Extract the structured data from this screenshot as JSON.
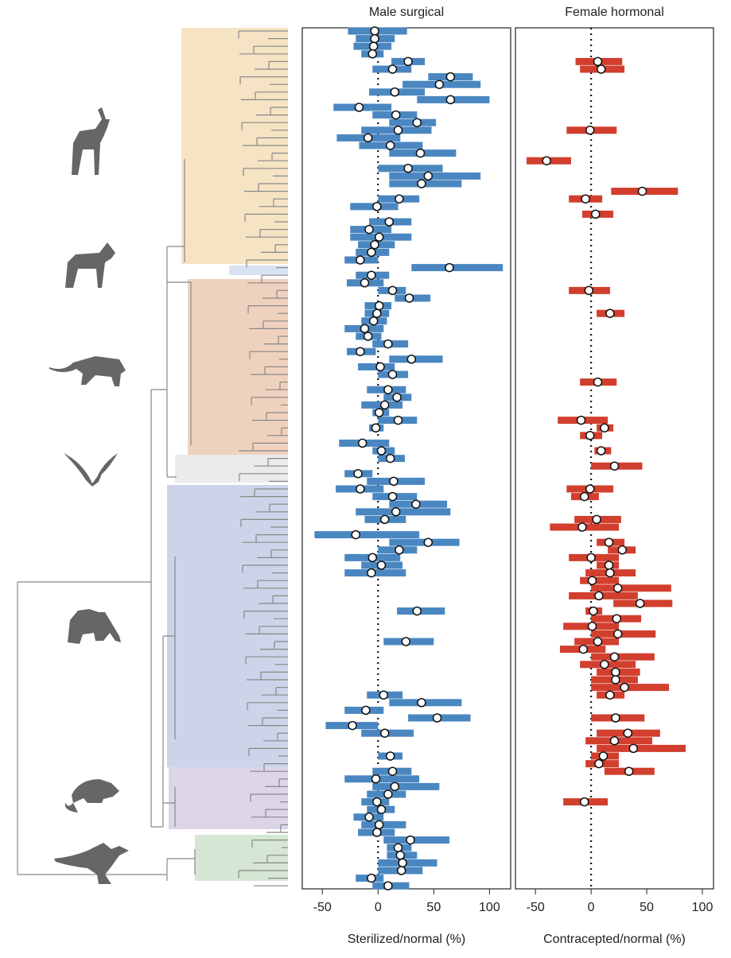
{
  "chart_data": [
    {
      "type": "forest",
      "title": "Male surgical",
      "x_label": "Sterilized/normal (%)",
      "color": "#4a87c1",
      "xlim": [
        -68,
        119
      ],
      "xticks": [
        -50,
        0,
        50,
        100
      ],
      "values": [
        -3,
        -3,
        -4,
        -5,
        27,
        13,
        65,
        55,
        15,
        65,
        -17,
        16,
        35,
        18,
        -9,
        11,
        38,
        null,
        27,
        45,
        39,
        null,
        19,
        -1,
        null,
        10,
        -8,
        1,
        -3,
        -6,
        -16,
        64,
        -6,
        -12,
        13,
        28,
        1,
        -1,
        -4,
        -12,
        -9,
        9,
        -16,
        30,
        2,
        13,
        null,
        9,
        17,
        6,
        1,
        18,
        -2,
        null,
        -14,
        3,
        11,
        null,
        -18,
        14,
        -16,
        13,
        34,
        16,
        6,
        null,
        -20,
        45,
        19,
        -5,
        3,
        -6,
        null,
        null,
        null,
        null,
        35,
        null,
        null,
        null,
        25,
        null,
        null,
        null,
        null,
        null,
        null,
        5,
        39,
        -11,
        53,
        -23,
        6,
        null,
        null,
        11,
        null,
        13,
        -2,
        15,
        9,
        -1,
        3,
        -8,
        1,
        -1,
        29,
        18,
        20,
        22,
        21,
        -6,
        9
      ],
      "lower": [
        -27,
        -20,
        -22,
        -15,
        12,
        -5,
        45,
        22,
        -8,
        35,
        -40,
        -5,
        10,
        -15,
        -37,
        -17,
        10,
        null,
        0,
        10,
        10,
        null,
        0,
        -25,
        null,
        -8,
        -25,
        -25,
        -18,
        -20,
        -30,
        30,
        -20,
        -28,
        0,
        15,
        -12,
        -12,
        -15,
        -30,
        -20,
        -5,
        -28,
        10,
        -18,
        0,
        null,
        -10,
        5,
        -15,
        -5,
        0,
        -8,
        null,
        -35,
        -5,
        0,
        null,
        -30,
        -10,
        -38,
        -5,
        10,
        -20,
        -12,
        null,
        -57,
        10,
        0,
        -30,
        -15,
        -30,
        null,
        null,
        null,
        null,
        17,
        null,
        null,
        null,
        5,
        null,
        null,
        null,
        null,
        null,
        null,
        -10,
        10,
        -30,
        27,
        -47,
        -15,
        null,
        null,
        0,
        null,
        -5,
        -30,
        -5,
        -10,
        -15,
        -10,
        -22,
        -15,
        -18,
        5,
        8,
        8,
        0,
        0,
        -20,
        -5
      ],
      "upper": [
        26,
        15,
        12,
        5,
        42,
        30,
        85,
        92,
        42,
        100,
        12,
        35,
        52,
        48,
        20,
        40,
        70,
        null,
        58,
        92,
        75,
        null,
        37,
        18,
        null,
        30,
        12,
        30,
        15,
        10,
        0,
        112,
        10,
        5,
        25,
        47,
        12,
        10,
        8,
        5,
        3,
        27,
        -2,
        58,
        15,
        27,
        null,
        25,
        30,
        22,
        10,
        35,
        5,
        null,
        10,
        15,
        24,
        null,
        -5,
        42,
        5,
        35,
        62,
        65,
        25,
        null,
        37,
        73,
        35,
        20,
        22,
        25,
        null,
        null,
        null,
        null,
        60,
        null,
        null,
        null,
        50,
        null,
        null,
        null,
        null,
        null,
        null,
        22,
        75,
        5,
        83,
        0,
        32,
        null,
        null,
        22,
        null,
        30,
        37,
        55,
        25,
        10,
        15,
        5,
        25,
        15,
        64,
        30,
        35,
        53,
        40,
        5,
        28
      ]
    },
    {
      "type": "forest",
      "title": "Female hormonal",
      "x_label": "Contracepted/normal (%)",
      "color": "#d23f2e",
      "xlim": [
        -68,
        110
      ],
      "xticks": [
        -50,
        0,
        50,
        100
      ],
      "values": [
        null,
        null,
        null,
        null,
        6,
        9,
        null,
        null,
        null,
        null,
        null,
        null,
        null,
        -1,
        null,
        null,
        null,
        -40,
        null,
        null,
        null,
        46,
        -5,
        null,
        4,
        null,
        null,
        null,
        null,
        null,
        null,
        null,
        null,
        null,
        -2,
        null,
        null,
        17,
        null,
        null,
        null,
        null,
        null,
        null,
        null,
        null,
        6,
        null,
        null,
        null,
        null,
        -9,
        12,
        -1,
        null,
        9,
        null,
        21,
        null,
        null,
        -1,
        -6,
        null,
        null,
        5,
        -8,
        null,
        16,
        28,
        0,
        16,
        17,
        1,
        24,
        7,
        44,
        2,
        23,
        1,
        24,
        6,
        -7,
        21,
        12,
        22,
        22,
        30,
        17,
        null,
        null,
        22,
        null,
        33,
        21,
        38,
        11,
        7,
        34,
        null,
        null,
        null,
        -6,
        null,
        null,
        null,
        null,
        null,
        null,
        null,
        null,
        null,
        null,
        null
      ],
      "lower": [
        null,
        null,
        null,
        null,
        -14,
        -10,
        null,
        null,
        null,
        null,
        null,
        null,
        null,
        -22,
        null,
        null,
        null,
        -58,
        null,
        null,
        null,
        18,
        -20,
        null,
        -8,
        null,
        null,
        null,
        null,
        null,
        null,
        null,
        null,
        null,
        -20,
        null,
        null,
        5,
        null,
        null,
        null,
        null,
        null,
        null,
        null,
        null,
        -10,
        null,
        null,
        null,
        null,
        -30,
        5,
        -10,
        null,
        3,
        null,
        0,
        null,
        null,
        -22,
        -18,
        null,
        null,
        -15,
        -37,
        null,
        5,
        15,
        -20,
        5,
        -5,
        -10,
        0,
        -20,
        20,
        -5,
        0,
        -25,
        0,
        -15,
        -28,
        0,
        -10,
        5,
        0,
        0,
        5,
        null,
        null,
        0,
        null,
        5,
        -5,
        5,
        0,
        -5,
        12,
        null,
        null,
        null,
        -25,
        null,
        null,
        null,
        null,
        null,
        null,
        null,
        null,
        null,
        null,
        null
      ],
      "upper": [
        null,
        null,
        null,
        null,
        28,
        30,
        null,
        null,
        null,
        null,
        null,
        null,
        null,
        23,
        null,
        null,
        null,
        -18,
        null,
        null,
        null,
        78,
        10,
        null,
        20,
        null,
        null,
        null,
        null,
        null,
        null,
        null,
        null,
        null,
        17,
        null,
        null,
        30,
        null,
        null,
        null,
        null,
        null,
        null,
        null,
        null,
        23,
        null,
        null,
        null,
        null,
        15,
        20,
        10,
        null,
        18,
        null,
        46,
        null,
        null,
        20,
        7,
        null,
        null,
        27,
        25,
        null,
        30,
        40,
        25,
        25,
        40,
        25,
        72,
        42,
        73,
        10,
        45,
        25,
        58,
        25,
        13,
        57,
        40,
        44,
        42,
        70,
        30,
        null,
        null,
        48,
        null,
        62,
        55,
        85,
        25,
        25,
        57,
        null,
        null,
        null,
        15,
        null,
        null,
        null,
        null,
        null,
        null,
        null,
        null,
        null,
        null,
        null
      ]
    }
  ]
}
